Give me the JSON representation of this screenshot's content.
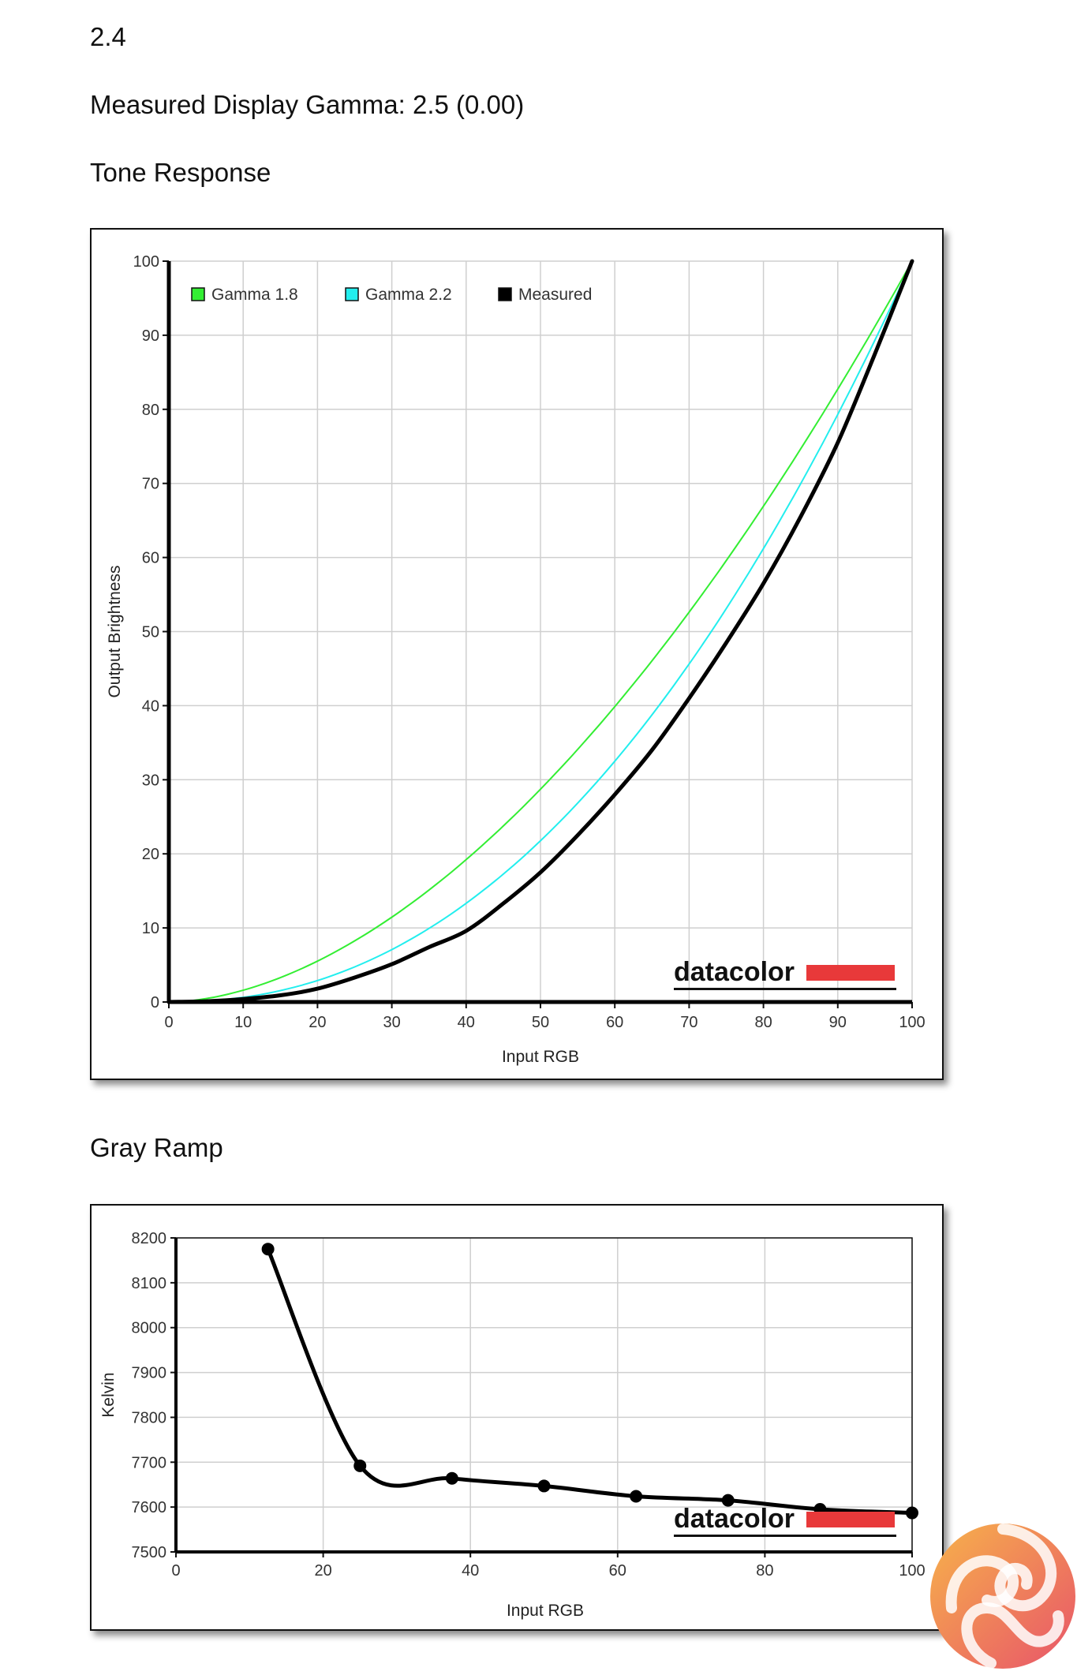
{
  "header": {
    "gamma_target": "2.4",
    "measured_gamma": "Measured Display Gamma: 2.5 (0.00)",
    "tone_heading": "Tone Response",
    "ramp_heading": "Gray Ramp"
  },
  "brand": {
    "name": "datacolor",
    "accent": "#e8393a"
  },
  "chart_data": [
    {
      "type": "line",
      "xlabel": "Input RGB",
      "ylabel": "Output Brightness",
      "xlim": [
        0,
        100
      ],
      "ylim": [
        0,
        100
      ],
      "xticks": [
        0,
        10,
        20,
        30,
        40,
        50,
        60,
        70,
        80,
        90,
        100
      ],
      "yticks": [
        0,
        10,
        20,
        30,
        40,
        50,
        60,
        70,
        80,
        90,
        100
      ],
      "grid": true,
      "legend_position": "top-left",
      "series": [
        {
          "name": "Gamma 1.8",
          "color": "#33ee33",
          "gamma": 1.8
        },
        {
          "name": "Gamma 2.2",
          "color": "#22eeee",
          "gamma": 2.2
        },
        {
          "name": "Measured",
          "color": "#000000",
          "x": [
            0,
            5,
            10,
            15,
            20,
            25,
            30,
            35,
            40,
            45,
            50,
            55,
            60,
            65,
            70,
            75,
            80,
            85,
            90,
            95,
            100
          ],
          "y": [
            0,
            0.1,
            0.4,
            0.9,
            1.8,
            3.3,
            5.1,
            7.4,
            9.6,
            13.3,
            17.5,
            22.5,
            28,
            34,
            41,
            48.5,
            56.5,
            65.5,
            75.5,
            87.5,
            100
          ]
        }
      ]
    },
    {
      "type": "line",
      "xlabel": "Input RGB",
      "ylabel": "Kelvin",
      "xlim": [
        0,
        100
      ],
      "ylim": [
        7500,
        8200
      ],
      "xticks": [
        0,
        20,
        40,
        60,
        80,
        100
      ],
      "yticks": [
        7500,
        7600,
        7700,
        7800,
        7900,
        8000,
        8100,
        8200
      ],
      "grid": true,
      "series": [
        {
          "color": "#000000",
          "x": [
            12.5,
            25,
            37.5,
            50,
            62.5,
            75,
            87.5,
            100
          ],
          "y": [
            8175,
            7692,
            7664,
            7647,
            7624,
            7615,
            7595,
            7587
          ]
        }
      ]
    }
  ]
}
